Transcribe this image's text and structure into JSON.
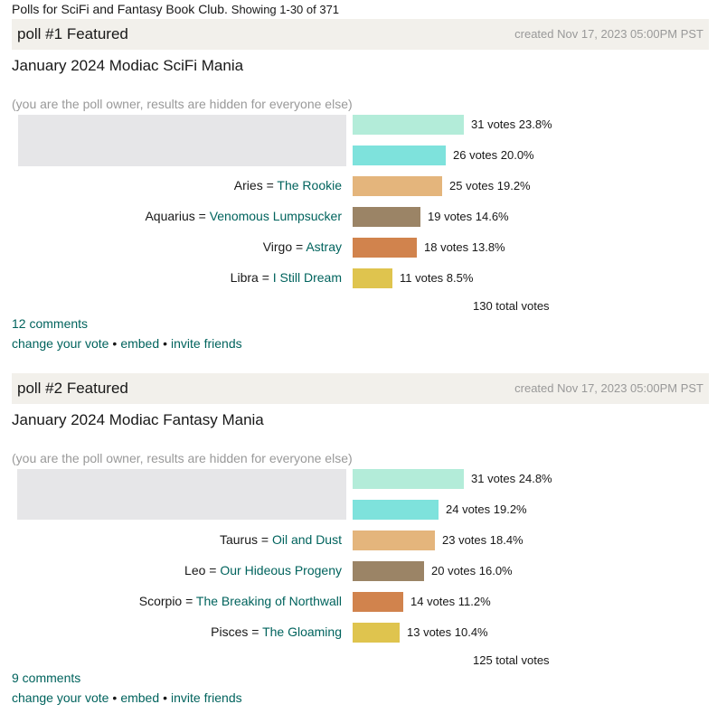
{
  "header": {
    "title": "Polls for SciFi and Fantasy Book Club.",
    "count_text": "Showing 1-30 of 371"
  },
  "colors": {
    "link": "#00635d",
    "bars": [
      "#b3ecd9",
      "#7ee2dc",
      "#e4b57c",
      "#9b8466",
      "#d1834d",
      "#dfc44e"
    ]
  },
  "polls": [
    {
      "label": "poll #1 Featured",
      "created": "created Nov 17, 2023 05:00PM PST",
      "title": "January 2024 Modiac SciFi Mania",
      "owner_note": "(you are the poll owner, results are hidden for everyone else)",
      "max_votes": 31,
      "options": [
        {
          "prefix": "",
          "link": "",
          "votes": 31,
          "votes_text": "31 votes 23.8%"
        },
        {
          "prefix": "",
          "link": "",
          "votes": 26,
          "votes_text": "26 votes 20.0%"
        },
        {
          "prefix": "Aries = ",
          "link": "The Rookie",
          "votes": 25,
          "votes_text": "25 votes 19.2%"
        },
        {
          "prefix": "Aquarius = ",
          "link": "Venomous Lumpsucker",
          "votes": 19,
          "votes_text": "19 votes 14.6%"
        },
        {
          "prefix": "Virgo = ",
          "link": "Astray",
          "votes": 18,
          "votes_text": "18 votes 13.8%"
        },
        {
          "prefix": "Libra = ",
          "link": "I Still Dream",
          "votes": 11,
          "votes_text": "11 votes 8.5%"
        }
      ],
      "total": "130 total votes",
      "comments": "12 comments",
      "actions": {
        "change_vote": "change your vote",
        "embed": "embed",
        "invite": "invite friends",
        "sep": "•"
      }
    },
    {
      "label": "poll #2 Featured",
      "created": "created Nov 17, 2023 05:00PM PST",
      "title": "January 2024 Modiac Fantasy Mania",
      "owner_note": "(you are the poll owner, results are hidden for everyone else)",
      "max_votes": 31,
      "options": [
        {
          "prefix": "",
          "link": "",
          "votes": 31,
          "votes_text": "31 votes 24.8%"
        },
        {
          "prefix": "",
          "link": "",
          "votes": 24,
          "votes_text": "24 votes 19.2%"
        },
        {
          "prefix": "Taurus = ",
          "link": "Oil and Dust",
          "votes": 23,
          "votes_text": "23 votes 18.4%"
        },
        {
          "prefix": "Leo = ",
          "link": "Our Hideous Progeny",
          "votes": 20,
          "votes_text": "20 votes 16.0%"
        },
        {
          "prefix": "Scorpio = ",
          "link": "The Breaking of Northwall",
          "votes": 14,
          "votes_text": "14 votes 11.2%"
        },
        {
          "prefix": "Pisces = ",
          "link": "The Gloaming",
          "votes": 13,
          "votes_text": "13 votes 10.4%"
        }
      ],
      "total": "125 total votes",
      "comments": "9 comments",
      "actions": {
        "change_vote": "change your vote",
        "embed": "embed",
        "invite": "invite friends",
        "sep": "•"
      }
    }
  ]
}
